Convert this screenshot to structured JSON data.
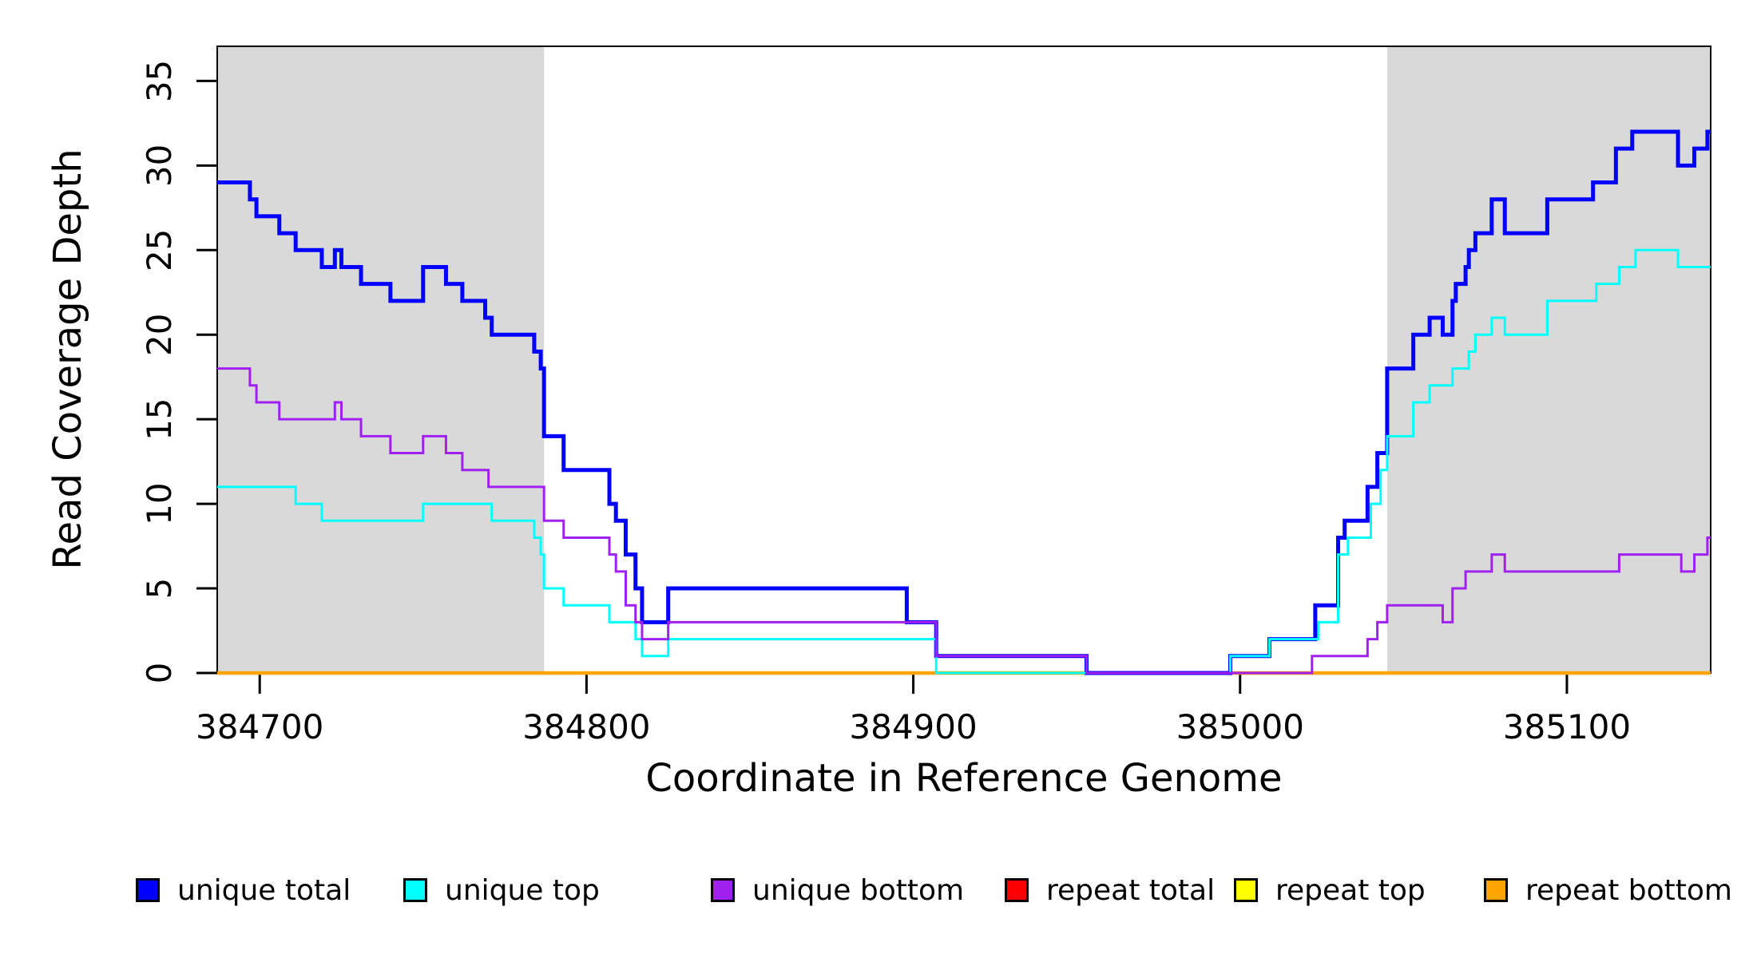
{
  "page": {
    "background": "#ffffff"
  },
  "chart_data": {
    "type": "line",
    "subtype": "step",
    "title": "",
    "xlabel": "Coordinate in Reference Genome",
    "ylabel": "Read Coverage Depth",
    "x_range": [
      384687,
      385144
    ],
    "y_range": [
      0,
      37.05
    ],
    "grid": false,
    "legend_position": "bottom",
    "box_color": "#000000",
    "shade_color": "#d9d9d9",
    "x_ticks": [
      {
        "value": 384700,
        "label": "384700"
      },
      {
        "value": 384800,
        "label": "384800"
      },
      {
        "value": 384900,
        "label": "384900"
      },
      {
        "value": 385000,
        "label": "385000"
      },
      {
        "value": 385100,
        "label": "385100"
      }
    ],
    "y_ticks": [
      {
        "value": 0,
        "label": "0"
      },
      {
        "value": 5,
        "label": "5"
      },
      {
        "value": 10,
        "label": "10"
      },
      {
        "value": 15,
        "label": "15"
      },
      {
        "value": 20,
        "label": "20"
      },
      {
        "value": 25,
        "label": "25"
      },
      {
        "value": 30,
        "label": "30"
      },
      {
        "value": 35,
        "label": "35"
      }
    ],
    "shaded_regions": [
      {
        "x0": 384687,
        "x1": 384787
      },
      {
        "x0": 385045,
        "x1": 385144
      }
    ],
    "series": [
      {
        "key": "unique-total",
        "label": "unique total",
        "color": "#0000FF",
        "width": 5,
        "z": 4,
        "points": [
          [
            384687,
            29
          ],
          [
            384697,
            28
          ],
          [
            384699,
            27
          ],
          [
            384706,
            26
          ],
          [
            384711,
            25
          ],
          [
            384719,
            24
          ],
          [
            384723,
            25
          ],
          [
            384725,
            24
          ],
          [
            384731,
            23
          ],
          [
            384740,
            22
          ],
          [
            384750,
            24
          ],
          [
            384757,
            23
          ],
          [
            384762,
            22
          ],
          [
            384769,
            21
          ],
          [
            384771,
            20
          ],
          [
            384784,
            19
          ],
          [
            384786,
            18
          ],
          [
            384787,
            14
          ],
          [
            384793,
            12
          ],
          [
            384807,
            10
          ],
          [
            384809,
            9
          ],
          [
            384812,
            7
          ],
          [
            384815,
            5
          ],
          [
            384817,
            3
          ],
          [
            384825,
            5
          ],
          [
            384898,
            3
          ],
          [
            384907,
            1
          ],
          [
            384953,
            0
          ],
          [
            384997,
            1
          ],
          [
            385009,
            2
          ],
          [
            385023,
            4
          ],
          [
            385030,
            8
          ],
          [
            385032,
            9
          ],
          [
            385039,
            11
          ],
          [
            385042,
            13
          ],
          [
            385045,
            18
          ],
          [
            385053,
            20
          ],
          [
            385058,
            21
          ],
          [
            385062,
            20
          ],
          [
            385065,
            22
          ],
          [
            385066,
            23
          ],
          [
            385069,
            24
          ],
          [
            385070,
            25
          ],
          [
            385072,
            26
          ],
          [
            385077,
            28
          ],
          [
            385081,
            26
          ],
          [
            385094,
            28
          ],
          [
            385108,
            29
          ],
          [
            385115,
            31
          ],
          [
            385120,
            32
          ],
          [
            385134,
            30
          ],
          [
            385139,
            31
          ],
          [
            385143,
            32
          ]
        ]
      },
      {
        "key": "unique-top",
        "label": "unique top",
        "color": "#00FFFF",
        "width": 3,
        "z": 5,
        "points": [
          [
            384687,
            11
          ],
          [
            384711,
            10
          ],
          [
            384719,
            9
          ],
          [
            384750,
            10
          ],
          [
            384771,
            9
          ],
          [
            384784,
            8
          ],
          [
            384786,
            7
          ],
          [
            384787,
            5
          ],
          [
            384793,
            4
          ],
          [
            384807,
            3
          ],
          [
            384815,
            2
          ],
          [
            384817,
            1
          ],
          [
            384825,
            2
          ],
          [
            384907,
            0
          ],
          [
            384997,
            1
          ],
          [
            385009,
            2
          ],
          [
            385024,
            3
          ],
          [
            385030,
            7
          ],
          [
            385033,
            8
          ],
          [
            385040,
            10
          ],
          [
            385043,
            12
          ],
          [
            385045,
            14
          ],
          [
            385053,
            16
          ],
          [
            385058,
            17
          ],
          [
            385065,
            18
          ],
          [
            385070,
            19
          ],
          [
            385072,
            20
          ],
          [
            385077,
            21
          ],
          [
            385081,
            20
          ],
          [
            385094,
            22
          ],
          [
            385109,
            23
          ],
          [
            385116,
            24
          ],
          [
            385121,
            25
          ],
          [
            385134,
            24
          ]
        ]
      },
      {
        "key": "unique-bottom",
        "label": "unique bottom",
        "color": "#A020F0",
        "width": 3,
        "z": 6,
        "points": [
          [
            384687,
            18
          ],
          [
            384697,
            17
          ],
          [
            384699,
            16
          ],
          [
            384706,
            15
          ],
          [
            384723,
            16
          ],
          [
            384725,
            15
          ],
          [
            384731,
            14
          ],
          [
            384740,
            13
          ],
          [
            384750,
            14
          ],
          [
            384757,
            13
          ],
          [
            384762,
            12
          ],
          [
            384770,
            11
          ],
          [
            384787,
            9
          ],
          [
            384793,
            8
          ],
          [
            384807,
            7
          ],
          [
            384809,
            6
          ],
          [
            384812,
            4
          ],
          [
            384815,
            3
          ],
          [
            384817,
            2
          ],
          [
            384825,
            3
          ],
          [
            384907,
            1
          ],
          [
            384953,
            0
          ],
          [
            385022,
            1
          ],
          [
            385039,
            2
          ],
          [
            385042,
            3
          ],
          [
            385045,
            4
          ],
          [
            385062,
            3
          ],
          [
            385065,
            5
          ],
          [
            385069,
            6
          ],
          [
            385077,
            7
          ],
          [
            385081,
            6
          ],
          [
            385116,
            7
          ],
          [
            385135,
            6
          ],
          [
            385139,
            7
          ],
          [
            385143,
            8
          ]
        ]
      },
      {
        "key": "repeat-total",
        "label": "repeat total",
        "color": "#FF0000",
        "width": 3,
        "z": 1,
        "points": [
          [
            384687,
            0
          ]
        ]
      },
      {
        "key": "repeat-top",
        "label": "repeat top",
        "color": "#FFFF00",
        "width": 3,
        "z": 2,
        "points": [
          [
            384687,
            0
          ]
        ]
      },
      {
        "key": "repeat-bottom",
        "label": "repeat bottom",
        "color": "#FFA500",
        "width": 4.5,
        "z": 3,
        "points": [
          [
            384687,
            0
          ]
        ]
      }
    ]
  },
  "legend": {
    "artifact_mark": "·"
  }
}
